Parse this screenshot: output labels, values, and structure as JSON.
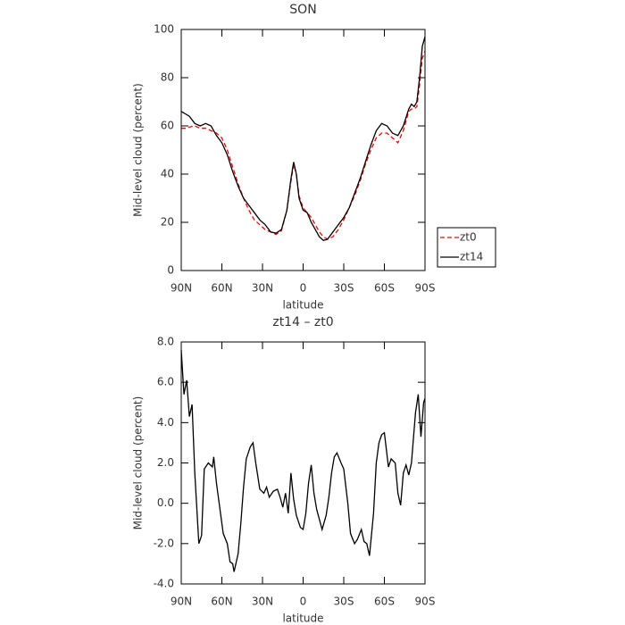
{
  "chart_data": [
    {
      "type": "line",
      "title": "SON",
      "xlabel": "latitude",
      "ylabel": "Mid-level cloud (percent)",
      "x": [
        90,
        87,
        84,
        80,
        76,
        72,
        68,
        64,
        60,
        56,
        52,
        48,
        44,
        40,
        36,
        32,
        28,
        24,
        20,
        16,
        12,
        9,
        7,
        5,
        3,
        0,
        -3,
        -6,
        -9,
        -12,
        -15,
        -18,
        -22,
        -26,
        -30,
        -34,
        -38,
        -42,
        -46,
        -50,
        -54,
        -58,
        -62,
        -66,
        -70,
        -74,
        -78,
        -80,
        -82,
        -84,
        -86,
        -88,
        -90
      ],
      "series": [
        {
          "name": "zt0",
          "color": "#ff0000",
          "style": "dashed",
          "values": [
            59,
            59,
            59.5,
            60,
            59,
            59,
            58,
            57,
            55,
            50,
            43,
            36,
            30,
            25,
            21,
            19,
            17,
            16,
            15,
            16.5,
            25,
            37,
            44,
            40,
            31,
            26,
            24,
            22,
            19,
            16,
            14,
            13,
            14,
            17,
            21,
            26,
            31,
            37,
            44,
            50,
            55,
            57,
            57,
            55,
            53,
            58,
            66,
            67,
            67,
            68,
            77,
            88,
            91
          ]
        },
        {
          "name": "zt14",
          "color": "#000000",
          "style": "solid",
          "values": [
            66,
            65,
            64,
            61,
            60,
            61,
            60,
            56,
            53,
            48,
            41,
            35,
            30,
            27,
            24,
            21,
            19,
            16,
            15.5,
            17,
            25,
            38,
            45,
            40,
            30,
            25,
            24,
            20,
            17,
            14,
            12.5,
            13,
            16,
            19,
            22,
            26,
            32,
            38,
            45,
            52,
            58,
            61,
            60,
            57,
            56,
            60,
            67,
            69,
            68,
            70,
            80,
            93,
            97
          ]
        }
      ],
      "xlim": [
        90,
        -90
      ],
      "xticks": [
        {
          "value": 90,
          "label": "90N"
        },
        {
          "value": 60,
          "label": "60N"
        },
        {
          "value": 30,
          "label": "30N"
        },
        0,
        {
          "value": -30,
          "label": "30S"
        },
        {
          "value": -60,
          "label": "60S"
        },
        {
          "value": -90,
          "label": "90S"
        }
      ],
      "ylim": [
        0,
        100
      ],
      "yticks": [
        0,
        20,
        40,
        60,
        80,
        100
      ],
      "legend": "right"
    },
    {
      "type": "line",
      "title": "zt14 – zt0",
      "xlabel": "latitude",
      "ylabel": "Mid-level cloud (percent)",
      "x": [
        90,
        88,
        86,
        84,
        82,
        80,
        77,
        75,
        73,
        70,
        67,
        66,
        64,
        61,
        59,
        56,
        54,
        52,
        51,
        48,
        46,
        44,
        42,
        39,
        37,
        35,
        32,
        29,
        27,
        25,
        22,
        19,
        17,
        15,
        13,
        11,
        9,
        7,
        5,
        2,
        0,
        -2,
        -4,
        -6,
        -8,
        -10,
        -12,
        -14,
        -17,
        -19,
        -21,
        -23,
        -25,
        -28,
        -30,
        -33,
        -35,
        -38,
        -40,
        -43,
        -45,
        -47,
        -49,
        -52,
        -54,
        -56,
        -58,
        -60,
        -63,
        -65,
        -68,
        -70,
        -72,
        -74,
        -76,
        -78,
        -80,
        -83,
        -85,
        -87,
        -89,
        -90
      ],
      "series": [
        {
          "name": "zt14 – zt0",
          "color": "#000000",
          "style": "solid",
          "values": [
            7.6,
            5.4,
            6.1,
            4.3,
            4.9,
            1.5,
            -2.0,
            -1.6,
            1.7,
            2.0,
            1.8,
            2.3,
            1.0,
            -0.5,
            -1.5,
            -2.0,
            -2.9,
            -3.0,
            -3.4,
            -2.5,
            -1.0,
            0.8,
            2.2,
            2.8,
            3.0,
            2.0,
            0.7,
            0.5,
            0.8,
            0.3,
            0.6,
            0.7,
            0.3,
            -0.2,
            0.5,
            -0.5,
            1.5,
            0.2,
            -0.6,
            -1.2,
            -1.3,
            -0.5,
            1.0,
            1.9,
            0.5,
            -0.3,
            -0.8,
            -1.3,
            -0.6,
            0.3,
            1.5,
            2.3,
            2.5,
            2.0,
            1.7,
            0.0,
            -1.5,
            -2.0,
            -1.8,
            -1.3,
            -1.9,
            -2.0,
            -2.6,
            -0.5,
            2.0,
            3.0,
            3.4,
            3.5,
            1.8,
            2.2,
            2.0,
            0.5,
            -0.1,
            1.5,
            1.9,
            1.4,
            2.0,
            4.5,
            5.4,
            3.3,
            5.0,
            5.2
          ]
        }
      ],
      "xlim": [
        90,
        -90
      ],
      "xticks": [
        {
          "value": 90,
          "label": "90N"
        },
        {
          "value": 60,
          "label": "60N"
        },
        {
          "value": 30,
          "label": "30N"
        },
        0,
        {
          "value": -30,
          "label": "30S"
        },
        {
          "value": -60,
          "label": "60S"
        },
        {
          "value": -90,
          "label": "90S"
        }
      ],
      "ylim": [
        -4,
        8
      ],
      "yticks": [
        {
          "value": -4,
          "label": "-4.0"
        },
        {
          "value": -2,
          "label": "-2.0"
        },
        {
          "value": 0,
          "label": "0.0"
        },
        {
          "value": 2,
          "label": "2.0"
        },
        {
          "value": 4,
          "label": "4.0"
        },
        {
          "value": 6,
          "label": "6.0"
        },
        {
          "value": 8,
          "label": "8.0"
        }
      ]
    }
  ]
}
